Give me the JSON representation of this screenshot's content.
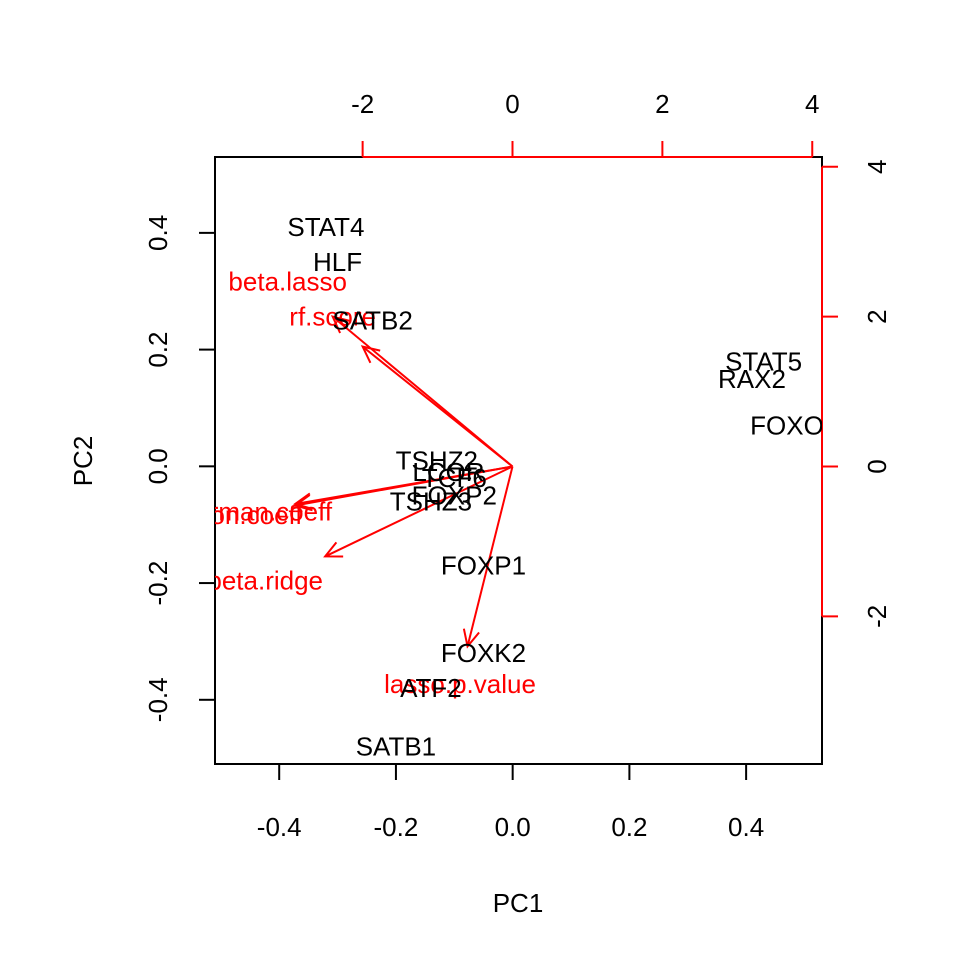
{
  "chart_data": {
    "type": "scatter",
    "subtype": "biplot",
    "xlabel": "PC1",
    "ylabel": "PC2",
    "xlim": [
      -0.51,
      0.53
    ],
    "ylim": [
      -0.51,
      0.53
    ],
    "grid": false,
    "bottom_axis": {
      "ticks": [
        -0.4,
        -0.2,
        0.0,
        0.2,
        0.4
      ],
      "tick_labels": [
        "-0.4",
        "-0.2",
        "0.0",
        "0.2",
        "0.4"
      ]
    },
    "left_axis": {
      "ticks": [
        -0.4,
        -0.2,
        0.0,
        0.2,
        0.4
      ],
      "tick_labels": [
        "-0.4",
        "-0.2",
        "0.0",
        "0.2",
        "0.4"
      ]
    },
    "top_axis": {
      "ticks": [
        -2,
        0,
        2,
        4
      ],
      "tick_labels": [
        "-2",
        "0",
        "2",
        "4"
      ],
      "range": [
        -3.97,
        4.13
      ],
      "color": "#ff0000",
      "label_color": "#000000"
    },
    "right_axis": {
      "ticks": [
        -2,
        0,
        2,
        4
      ],
      "tick_labels": [
        "-2",
        "0",
        "2",
        "4"
      ],
      "range": [
        -3.97,
        4.13
      ],
      "color": "#ff0000",
      "label_color": "#000000"
    },
    "observations": [
      {
        "label": "STAT4",
        "x": -0.32,
        "y": 0.41
      },
      {
        "label": "HLF",
        "x": -0.3,
        "y": 0.35
      },
      {
        "label": "SATB2",
        "x": -0.24,
        "y": 0.25
      },
      {
        "label": "STAT5",
        "x": 0.43,
        "y": 0.18
      },
      {
        "label": "RAX2",
        "x": 0.41,
        "y": 0.15
      },
      {
        "label": "FOXO",
        "x": 0.47,
        "y": 0.07
      },
      {
        "label": "TSHZ2",
        "x": -0.13,
        "y": 0.01
      },
      {
        "label": "LCOR",
        "x": -0.11,
        "y": -0.01
      },
      {
        "label": "TCF6",
        "x": -0.1,
        "y": -0.02
      },
      {
        "label": "FOXP2",
        "x": -0.1,
        "y": -0.05
      },
      {
        "label": "TSHZ3",
        "x": -0.14,
        "y": -0.06
      },
      {
        "label": "FOXP1",
        "x": -0.05,
        "y": -0.17
      },
      {
        "label": "FOXK2",
        "x": -0.05,
        "y": -0.32
      },
      {
        "label": "ATF2",
        "x": -0.14,
        "y": -0.38
      },
      {
        "label": "SATB1",
        "x": -0.2,
        "y": -0.48
      }
    ],
    "variables": [
      {
        "label": "beta.lasso",
        "x": -3.0,
        "y": 2.47,
        "arrow_x": -2.4,
        "arrow_y": 2.0
      },
      {
        "label": "rf.score",
        "x": -2.4,
        "y": 2.0,
        "arrow_x": -2.0,
        "arrow_y": 1.6
      },
      {
        "label": "pearson.coeff",
        "x": -3.85,
        "y": -0.65,
        "arrow_x": -2.9,
        "arrow_y": -0.5
      },
      {
        "label": "spearman.coeff",
        "x": -3.6,
        "y": -0.6,
        "arrow_x": -2.9,
        "arrow_y": -0.52
      },
      {
        "label": "beta.ridge",
        "x": -3.3,
        "y": -1.52,
        "arrow_x": -2.5,
        "arrow_y": -1.2
      },
      {
        "label": "lasso.p.value",
        "x": -0.7,
        "y": -2.9,
        "arrow_x": -0.6,
        "arrow_y": -2.4
      }
    ],
    "colors": {
      "observations": "#000000",
      "variables": "#ff0000",
      "axes": "#000000"
    }
  }
}
